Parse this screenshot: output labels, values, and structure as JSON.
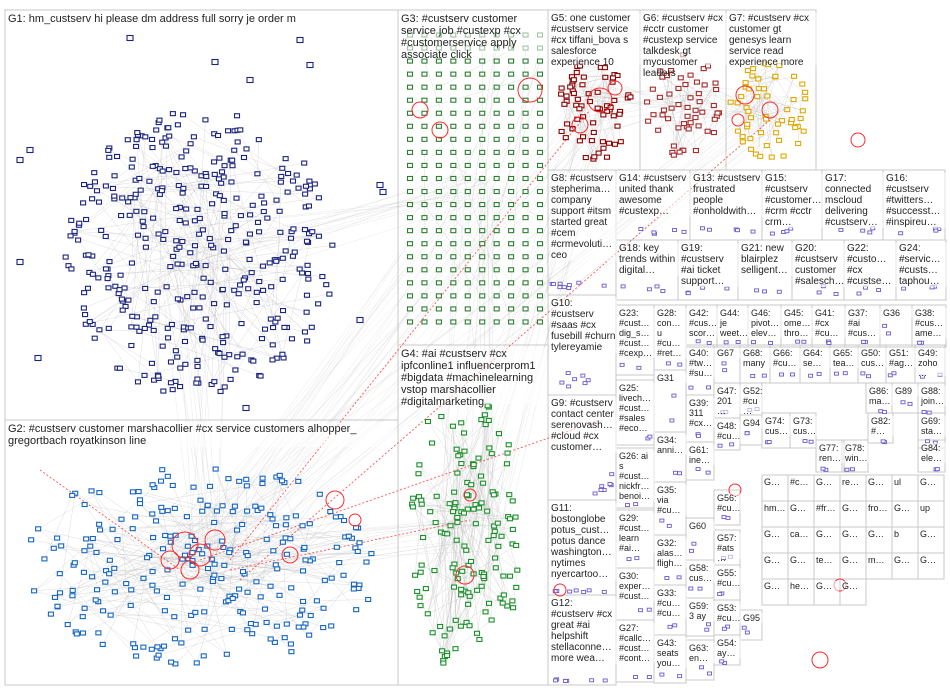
{
  "colors": {
    "border": "#c8c8c8",
    "edge": "#b8b8b8",
    "highlight": "#ff2a2a",
    "g1": "#1a237e",
    "g2": "#1565c0",
    "g3": "#2e7d32",
    "g4": "#1b8f2a",
    "g5": "#8b0000",
    "g6": "#a52a2a",
    "g7": "#e0a800",
    "misc": "#6a5acd"
  },
  "groups": [
    {
      "id": "G1",
      "label": "G1: hm_custserv hi please dm address full sorry je order m"
    },
    {
      "id": "G2",
      "label": "G2: #custserv customer marshacollier #cx service customers alhopper_ gregortbach royatkinson line"
    },
    {
      "id": "G3",
      "label": "G3: #custserv customer service job #custexp #cx #customerservice apply associate click"
    },
    {
      "id": "G4",
      "label": "G4: #ai #custserv #cx ipfconline1 influencerprom1 #bigdata #machinelearning vstop marshacollier #digitalmarketing"
    },
    {
      "id": "G5",
      "label": "G5: one customer #custserv service #cx tiffani_bova s salesforce experience 10"
    },
    {
      "id": "G6",
      "label": "G6: #custserv #cx #cctr customer #custexp service talkdesk gt mycustomer leaders"
    },
    {
      "id": "G7",
      "label": "G7: #custserv #cx customer gt genesys learn service read experience more"
    },
    {
      "id": "G8",
      "label": "G8: #custserv stepherima… company support #itsm started great #cem #crmevoluti… ceo"
    },
    {
      "id": "G9",
      "label": "G9: #custserv contact center serenovash… #cloud #cx customer…"
    },
    {
      "id": "G10",
      "label": "G10: #custserv #saas #cx fusebill #churn tylereyamie"
    },
    {
      "id": "G11",
      "label": "G11: bostonglobe potus_cust… potus dance washington… nytimes nyercartoo…"
    },
    {
      "id": "G12",
      "label": "G12: #custserv #cx great #ai helpshift stellaconne… more wea…"
    },
    {
      "id": "G13",
      "label": "G13: #custserv frustrated people #onholdwith…"
    },
    {
      "id": "G14",
      "label": "G14: #custserv united thank awesome #custexp…"
    },
    {
      "id": "G15",
      "label": "G15: #custserv #customer… #crm #cctr crm…"
    },
    {
      "id": "G16",
      "label": "G16: #custserv #twitters… #successt… #inspireu…"
    },
    {
      "id": "G17",
      "label": "G17: connected mscloud delivering #custserv…"
    },
    {
      "id": "G18",
      "label": "G18: key trends within digital…"
    },
    {
      "id": "G19",
      "label": "G19: #custserv #ai ticket support…"
    },
    {
      "id": "G20",
      "label": "G20: #custserv customer #salesch…"
    },
    {
      "id": "G21",
      "label": "G21: new blairplez selligent…"
    },
    {
      "id": "G22",
      "label": "G22: #custo… #cx #custse…"
    },
    {
      "id": "G23",
      "label": "G23: #cust… dig_s… #cust… #cexp…"
    },
    {
      "id": "G24",
      "label": "G24: #servic… #custs… taphou…"
    },
    {
      "id": "G25",
      "label": "G25: livech… #cust… #sales #eco…"
    },
    {
      "id": "G26",
      "label": "G26: ai s #cust… nickfr… benoi…"
    },
    {
      "id": "G27",
      "label": "G27: #callc… #cust… #cont…"
    },
    {
      "id": "G28",
      "label": "G28: con… u #cu… #ret…"
    },
    {
      "id": "G29",
      "label": "G29: #cust… learn #ai…"
    },
    {
      "id": "G30",
      "label": "G30: exper… #cust…"
    },
    {
      "id": "G31",
      "label": "G31"
    },
    {
      "id": "G32",
      "label": "G32: alas… fligh…"
    },
    {
      "id": "G33",
      "label": "G33: #cu… #cu…"
    },
    {
      "id": "G34",
      "label": "G34: anni…"
    },
    {
      "id": "G35",
      "label": "G35: via #cu…"
    },
    {
      "id": "G36",
      "label": "G36"
    },
    {
      "id": "G37",
      "label": "G37: #ai #cus…"
    },
    {
      "id": "G38",
      "label": "G38: #cus… ame…"
    },
    {
      "id": "G39",
      "label": "G39: 311 #cx…"
    },
    {
      "id": "G40",
      "label": "G40: #tw… #su…"
    },
    {
      "id": "G41",
      "label": "G41: #cx #cu…"
    },
    {
      "id": "G42",
      "label": "G42: #cus… scor…"
    },
    {
      "id": "G43",
      "label": "G43: seats you…"
    },
    {
      "id": "G44",
      "label": "G44: je weet…"
    },
    {
      "id": "G45",
      "label": "G45: ome… thro…"
    },
    {
      "id": "G46",
      "label": "G46: pivot… elev…"
    },
    {
      "id": "G47",
      "label": "G47: 201…"
    },
    {
      "id": "G48",
      "label": "G48: #cu…"
    },
    {
      "id": "G49",
      "label": "G49: zoho…"
    },
    {
      "id": "G50",
      "label": "G50: cus…"
    },
    {
      "id": "G51",
      "label": "G51: #ag…"
    },
    {
      "id": "G52",
      "label": "G52: #cu…"
    },
    {
      "id": "G53",
      "label": "G53: #cu…"
    },
    {
      "id": "G54",
      "label": "G54: ay…"
    },
    {
      "id": "G55",
      "label": "G55: #cu…"
    },
    {
      "id": "G56",
      "label": "G56: #cu…"
    },
    {
      "id": "G57",
      "label": "G57: #ats…"
    },
    {
      "id": "G58",
      "label": "G58: cus…"
    },
    {
      "id": "G59",
      "label": "G59: 3 ay"
    },
    {
      "id": "G60",
      "label": "G60"
    },
    {
      "id": "G61",
      "label": "G61: ine…"
    },
    {
      "id": "G63",
      "label": "G63: en…"
    },
    {
      "id": "G64",
      "label": "G64: se…"
    },
    {
      "id": "G65",
      "label": "G65: tea…"
    },
    {
      "id": "G66",
      "label": "G66: #cu…"
    },
    {
      "id": "G67",
      "label": "G67"
    },
    {
      "id": "G68",
      "label": "G68: many"
    },
    {
      "id": "G69",
      "label": "G69: sta…"
    },
    {
      "id": "G73",
      "label": "G73: cus…"
    },
    {
      "id": "G74",
      "label": "G74: cus…"
    },
    {
      "id": "G77",
      "label": "G77: ren…"
    },
    {
      "id": "G78",
      "label": "G78: win…"
    },
    {
      "id": "G82",
      "label": "G82: #…"
    },
    {
      "id": "G84",
      "label": "G84: ele…"
    },
    {
      "id": "G86",
      "label": "G86: ma…"
    },
    {
      "id": "G88",
      "label": "G88: join…"
    },
    {
      "id": "G89",
      "label": "G89"
    },
    {
      "id": "G94",
      "label": "G94"
    },
    {
      "id": "G95",
      "label": "G95"
    }
  ],
  "mosaic": [
    "G…",
    "#c…",
    "G…",
    "re…",
    "G…",
    "ul",
    "G…",
    "hm…",
    "G…",
    "#fr…",
    "G…",
    "fro…",
    "G…",
    "up",
    "G…",
    "ca…",
    "G…",
    "G…",
    "G…",
    "b",
    "G…",
    "G…",
    "G…",
    "te…",
    "G…",
    "m…",
    "G…",
    "G…",
    "G…",
    "he…",
    "G…",
    "G…"
  ]
}
